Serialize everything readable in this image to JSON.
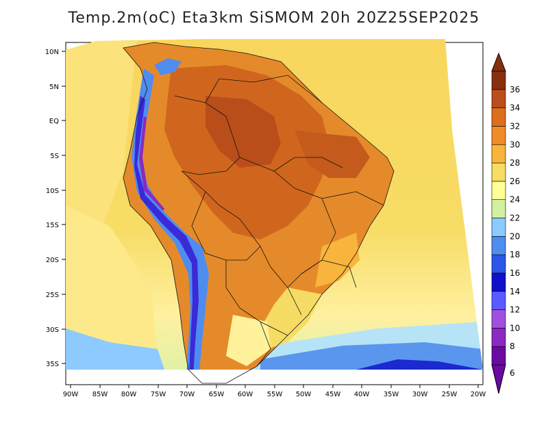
{
  "title": "Temp.2m(oC) Eta3km SiSMOM 20h 20Z25SEP2025",
  "lat_ticks": [
    "10N",
    "5N",
    "EQ",
    "5S",
    "10S",
    "15S",
    "20S",
    "25S",
    "30S",
    "35S"
  ],
  "lon_ticks": [
    "90W",
    "85W",
    "80W",
    "75W",
    "70W",
    "65W",
    "60W",
    "55W",
    "50W",
    "45W",
    "40W",
    "35W",
    "30W",
    "25W",
    "20W"
  ],
  "colorbar": {
    "labels": [
      "6",
      "8",
      "10",
      "12",
      "14",
      "16",
      "18",
      "20",
      "22",
      "24",
      "26",
      "28",
      "30",
      "32",
      "34",
      "36"
    ],
    "colors": [
      "#6a0aa0",
      "#8a2ac0",
      "#a050e0",
      "#5a5aff",
      "#1010c8",
      "#2a55e6",
      "#4f8cf0",
      "#8ccaff",
      "#d2f0a0",
      "#ffff96",
      "#f6dc64",
      "#f8b43c",
      "#f08c28",
      "#dc6e1e",
      "#b94e1a",
      "#8a2e10"
    ]
  },
  "colors": {
    "ocean_warm": "#f7d75c",
    "ocean_cool": "#f6c84a",
    "land_hot": "#d9691f",
    "land_hottest": "#b94e1a",
    "andes_cold": "#3a3aff",
    "south_ocean": "#8ccaff"
  }
}
